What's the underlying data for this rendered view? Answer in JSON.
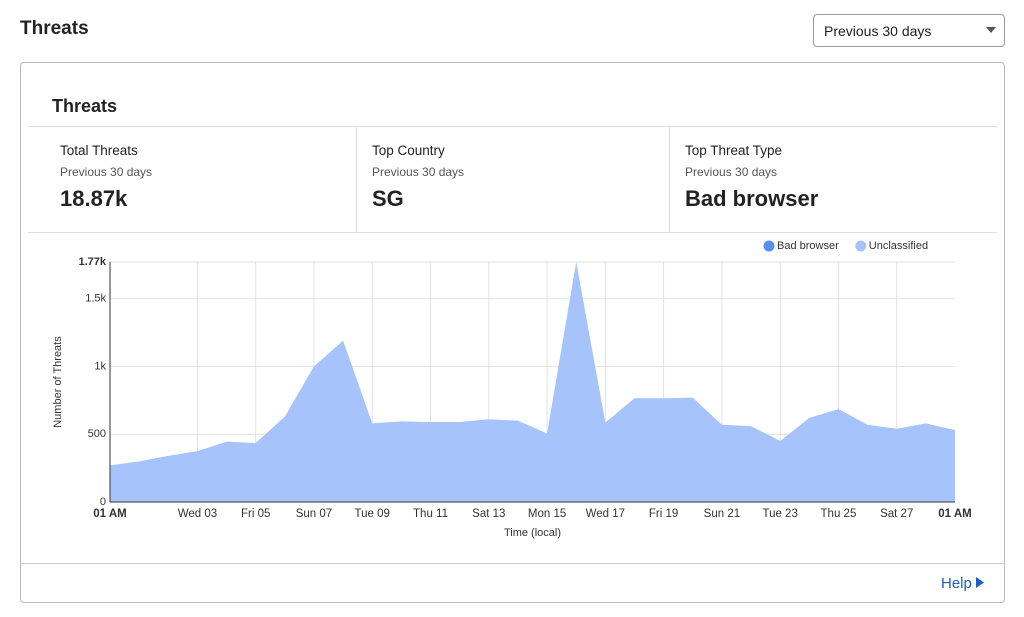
{
  "header": {
    "title": "Threats",
    "range_select": "Previous 30 days"
  },
  "card": {
    "title": "Threats",
    "stats": [
      {
        "label": "Total Threats",
        "period": "Previous 30 days",
        "value": "18.87k"
      },
      {
        "label": "Top Country",
        "period": "Previous 30 days",
        "value": "SG"
      },
      {
        "label": "Top Threat Type",
        "period": "Previous 30 days",
        "value": "Bad browser"
      }
    ]
  },
  "chart_data": {
    "type": "area",
    "stacked": true,
    "y_label": "Number of Threats",
    "x_label": "Time (local)",
    "categories": [
      "01 AM",
      null,
      null,
      "Wed 03",
      null,
      "Fri 05",
      null,
      "Sun 07",
      null,
      "Tue 09",
      null,
      "Thu 11",
      null,
      "Sat 13",
      null,
      "Mon 15",
      null,
      "Wed 17",
      null,
      "Fri 19",
      null,
      "Sun 21",
      null,
      "Tue 23",
      null,
      "Thu 25",
      null,
      "Sat 27",
      null,
      "01 AM"
    ],
    "series": [
      {
        "name": "Bad browser",
        "color": "#5b8def",
        "values": [
          0,
          0,
          0,
          0,
          0,
          0,
          0,
          0,
          0,
          0,
          0,
          0,
          0,
          0,
          0,
          0,
          0,
          0,
          0,
          0,
          0,
          0,
          0,
          0,
          0,
          0,
          0,
          0,
          0,
          0
        ]
      },
      {
        "name": "Unclassified",
        "color": "#a6c4fb",
        "values": [
          270,
          300,
          340,
          375,
          445,
          435,
          630,
          1000,
          1190,
          580,
          595,
          590,
          590,
          610,
          600,
          505,
          1770,
          585,
          765,
          765,
          770,
          570,
          560,
          450,
          620,
          685,
          570,
          540,
          580,
          530
        ]
      }
    ],
    "ylim": [
      0,
      1770
    ],
    "yticks": [
      0,
      500,
      {
        "value": 1000,
        "label": "1k"
      },
      {
        "value": 1500,
        "label": "1.5k"
      },
      {
        "value": 1770,
        "label": "1.77k"
      }
    ],
    "grid": true,
    "legend": "top-right"
  },
  "footer": {
    "help": "Help"
  }
}
